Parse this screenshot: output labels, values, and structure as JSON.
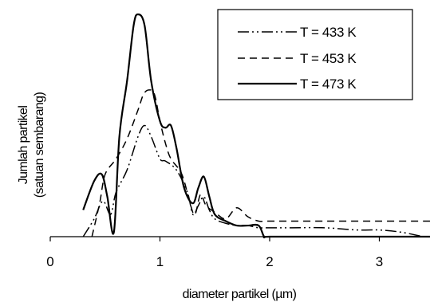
{
  "chart_data": {
    "type": "line",
    "title": "",
    "xlabel": "diameter partikel (µm)",
    "ylabel": "Jumlah partikel (satuan sembarang)",
    "ylabel_lines": [
      "Jumlah partikel",
      "(satuan sembarang)"
    ],
    "xlim": [
      0,
      3.5
    ],
    "ylim": [
      0,
      1
    ],
    "x_ticks": [
      0,
      1,
      2,
      3
    ],
    "x_tick_labels": [
      "0",
      "1",
      "2",
      "3"
    ],
    "y_ticks_shown": false,
    "grid": false,
    "legend_position": "top-right",
    "series": [
      {
        "name": "T = 433 K",
        "style": "dash-dot-dot",
        "x": [
          0.3,
          0.4,
          0.48,
          0.55,
          0.6,
          0.7,
          0.8,
          0.86,
          0.92,
          1.0,
          1.05,
          1.15,
          1.25,
          1.3,
          1.35,
          1.4,
          1.45,
          1.5,
          1.6,
          1.7,
          1.8,
          1.9,
          2.0,
          2.2,
          2.5,
          2.8,
          3.0,
          3.2,
          3.4
        ],
        "y": [
          0.0,
          0.08,
          0.16,
          0.1,
          0.2,
          0.3,
          0.45,
          0.5,
          0.45,
          0.35,
          0.34,
          0.3,
          0.2,
          0.1,
          0.14,
          0.18,
          0.12,
          0.08,
          0.06,
          0.05,
          0.05,
          0.04,
          0.04,
          0.04,
          0.04,
          0.03,
          0.03,
          0.02,
          0.0
        ]
      },
      {
        "name": "T = 453 K",
        "style": "dashed",
        "x": [
          0.38,
          0.45,
          0.5,
          0.6,
          0.7,
          0.8,
          0.85,
          0.9,
          0.95,
          1.0,
          1.05,
          1.1,
          1.2,
          1.28,
          1.32,
          1.37,
          1.42,
          1.5,
          1.6,
          1.7,
          1.8,
          1.9,
          2.0,
          2.5,
          3.0,
          3.5
        ],
        "y": [
          0.0,
          0.15,
          0.28,
          0.35,
          0.44,
          0.57,
          0.64,
          0.66,
          0.64,
          0.52,
          0.42,
          0.35,
          0.28,
          0.14,
          0.1,
          0.19,
          0.14,
          0.11,
          0.08,
          0.13,
          0.09,
          0.07,
          0.07,
          0.07,
          0.07,
          0.07
        ]
      },
      {
        "name": "T = 473 K",
        "style": "solid",
        "x": [
          0.3,
          0.4,
          0.47,
          0.52,
          0.58,
          0.63,
          0.7,
          0.76,
          0.8,
          0.86,
          0.92,
          1.0,
          1.05,
          1.1,
          1.15,
          1.22,
          1.3,
          1.35,
          1.4,
          1.45,
          1.5,
          1.6,
          1.7,
          1.8,
          1.9,
          1.95,
          2.0,
          2.5,
          3.0,
          3.5
        ],
        "y": [
          0.12,
          0.25,
          0.28,
          0.18,
          0.02,
          0.45,
          0.7,
          0.95,
          1.0,
          0.95,
          0.7,
          0.52,
          0.49,
          0.5,
          0.4,
          0.22,
          0.15,
          0.22,
          0.27,
          0.18,
          0.1,
          0.07,
          0.05,
          0.05,
          0.05,
          0.0,
          0.0,
          0.0,
          0.0,
          0.0
        ]
      }
    ]
  }
}
